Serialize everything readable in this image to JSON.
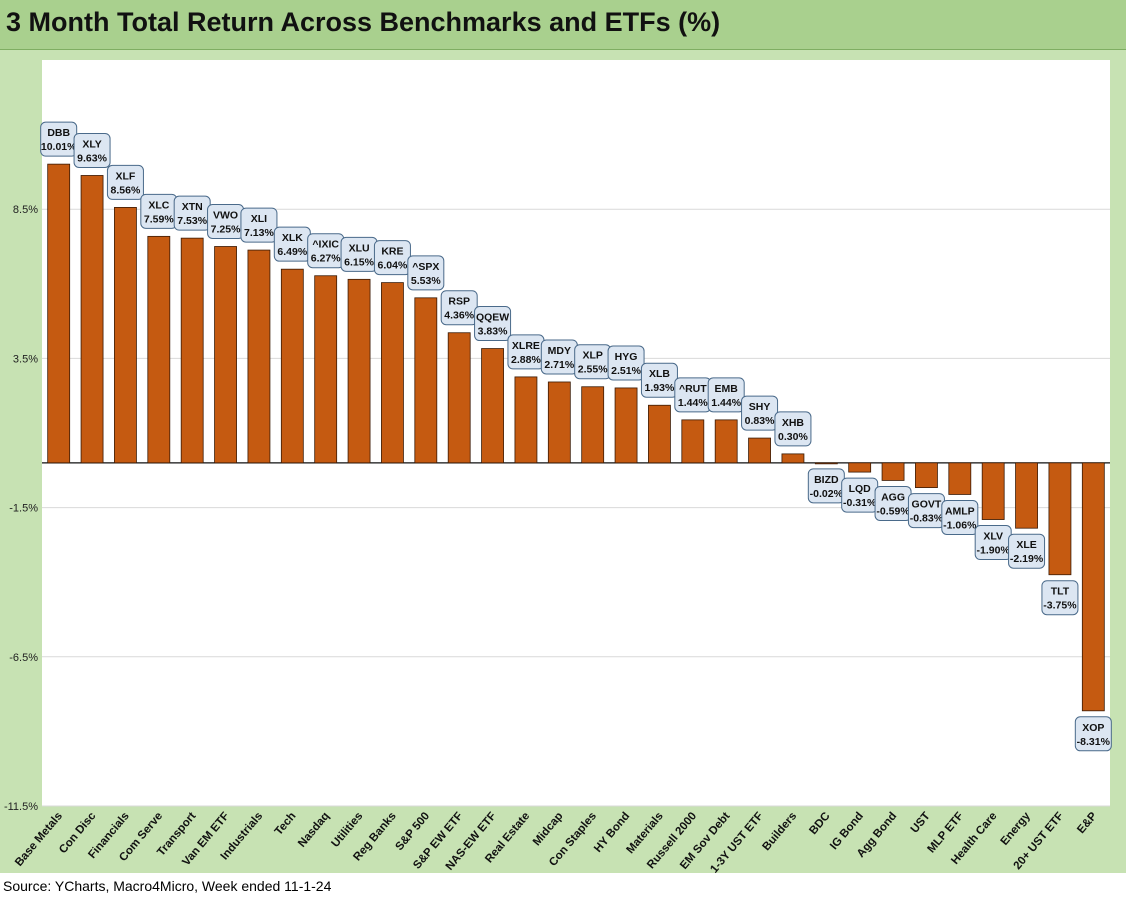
{
  "title": "3 Month Total Return Across Benchmarks and ETFs (%)",
  "source": "Source: YCharts, Macro4Micro, Week ended 11-1-24",
  "colors": {
    "bar": "#c55a11",
    "bar_stroke": "#3a1a05",
    "frame": "#c7e2b3",
    "title_bar": "#a9d08e",
    "label_fill": "#dce6f2",
    "label_stroke": "#4a6a8a",
    "grid": "#d9d9d9"
  },
  "chart_data": {
    "type": "bar",
    "title": "3 Month Total Return Across Benchmarks and ETFs (%)",
    "xlabel": "",
    "ylabel": "",
    "ylim": [
      -11.5,
      13.5
    ],
    "yticks": [
      -11.5,
      -6.5,
      -1.5,
      3.5,
      8.5
    ],
    "ytick_labels": [
      "-11.5%",
      "-6.5%",
      "-1.5%",
      "3.5%",
      "8.5%"
    ],
    "grid": true,
    "legend": "none",
    "categories": [
      "Base Metals",
      "Con Disc",
      "Financials",
      "Com Serve",
      "Transport",
      "Van EM ETF",
      "Industrials",
      "Tech",
      "Nasdaq",
      "Utilities",
      "Reg Banks",
      "S&P 500",
      "S&P EW ETF",
      "NAS-EW ETF",
      "Real Estate",
      "Midcap",
      "Con Staples",
      "HY Bond",
      "Materials",
      "Russell 2000",
      "EM Sov Debt",
      "1-3Y UST ETF",
      "Builders",
      "BDC",
      "IG Bond",
      "Agg Bond",
      "UST",
      "MLP ETF",
      "Health Care",
      "Energy",
      "20+ UST ETF",
      "E&P"
    ],
    "tickers": [
      "DBB",
      "XLY",
      "XLF",
      "XLC",
      "XTN",
      "VWO",
      "XLI",
      "XLK",
      "^IXIC",
      "XLU",
      "KRE",
      "^SPX",
      "RSP",
      "QQEW",
      "XLRE",
      "MDY",
      "XLP",
      "HYG",
      "XLB",
      "^RUT",
      "EMB",
      "SHY",
      "XHB",
      "BIZD",
      "LQD",
      "AGG",
      "GOVT",
      "AMLP",
      "XLV",
      "XLE",
      "TLT",
      "XOP"
    ],
    "values": [
      10.01,
      9.63,
      8.56,
      7.59,
      7.53,
      7.25,
      7.13,
      6.49,
      6.27,
      6.15,
      6.04,
      5.53,
      4.36,
      3.83,
      2.88,
      2.71,
      2.55,
      2.51,
      1.93,
      1.44,
      1.44,
      0.83,
      0.3,
      -0.02,
      -0.31,
      -0.59,
      -0.83,
      -1.06,
      -1.9,
      -2.19,
      -3.75,
      -8.31
    ],
    "value_labels": [
      "10.01%",
      "9.63%",
      "8.56%",
      "7.59%",
      "7.53%",
      "7.25%",
      "7.13%",
      "6.49%",
      "6.27%",
      "6.15%",
      "6.04%",
      "5.53%",
      "4.36%",
      "3.83%",
      "2.88%",
      "2.71%",
      "2.55%",
      "2.51%",
      "1.93%",
      "1.44%",
      "1.44%",
      "0.83%",
      "0.30%",
      "-0.02%",
      "-0.31%",
      "-0.59%",
      "-0.83%",
      "-1.06%",
      "-1.90%",
      "-2.19%",
      "-3.75%",
      "-8.31%"
    ]
  }
}
